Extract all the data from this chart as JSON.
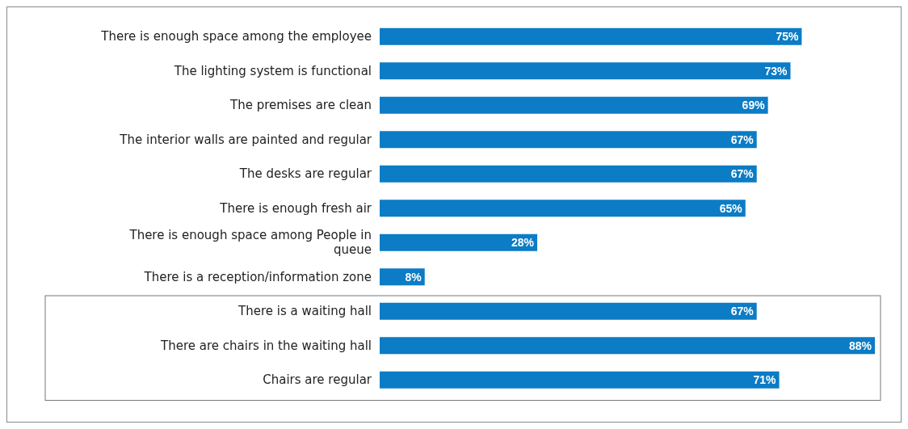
{
  "chart_data": {
    "type": "bar",
    "orientation": "horizontal",
    "color": "#0b7cc5",
    "categories": [
      "There is enough space among the employee",
      "The lighting system is functional",
      "The premises are clean",
      "The interior walls are painted and regular",
      "The desks are regular",
      "There is enough fresh air",
      "There is enough space among People in queue",
      "There is a reception/information zone",
      "There is a waiting hall",
      "There are chairs in the waiting hall",
      "Chairs are regular"
    ],
    "values": [
      75,
      73,
      69,
      67,
      67,
      65,
      28,
      8,
      67,
      88,
      71
    ],
    "value_labels": [
      "75%",
      "73%",
      "69%",
      "67%",
      "67%",
      "65%",
      "28%",
      "8%",
      "67%",
      "88%",
      "71%"
    ]
  }
}
